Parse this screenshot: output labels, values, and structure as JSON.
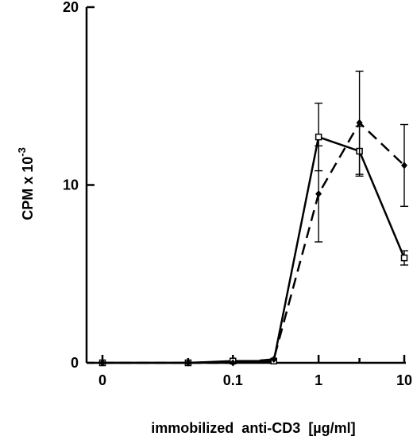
{
  "chart_data": {
    "type": "line",
    "title": "",
    "xlabel": "immobilized  anti-CD3  [µg/ml]",
    "ylabel": "CPM x 10-3",
    "x_scale": "log",
    "xlim": [
      0.003,
      10
    ],
    "ylim": [
      0,
      20
    ],
    "x_ticks": [
      {
        "value": 0.003,
        "label": "0"
      },
      {
        "value": 0.1,
        "label": "0.1"
      },
      {
        "value": 1,
        "label": "1"
      },
      {
        "value": 10,
        "label": "10"
      }
    ],
    "y_ticks": [
      {
        "value": 0,
        "label": "0"
      },
      {
        "value": 10,
        "label": "10"
      },
      {
        "value": 20,
        "label": "20"
      }
    ],
    "grid": false,
    "legend": "none",
    "x": [
      0.003,
      0.03,
      0.1,
      0.3,
      1,
      3,
      10
    ],
    "series": [
      {
        "line_style": "solid",
        "marker": "open-square",
        "values": [
          0.0,
          0.0,
          0.1,
          0.1,
          12.7,
          11.9,
          5.9
        ],
        "errors": [
          0.1,
          0.1,
          0.1,
          0.1,
          1.9,
          1.4,
          0.4
        ]
      },
      {
        "line_style": "dashed",
        "marker": "filled-diamond",
        "values": [
          0.0,
          0.0,
          0.0,
          0.2,
          9.5,
          13.5,
          11.1
        ],
        "errors": [
          0.1,
          0.1,
          0.1,
          0.1,
          2.7,
          2.9,
          2.3
        ]
      }
    ]
  }
}
